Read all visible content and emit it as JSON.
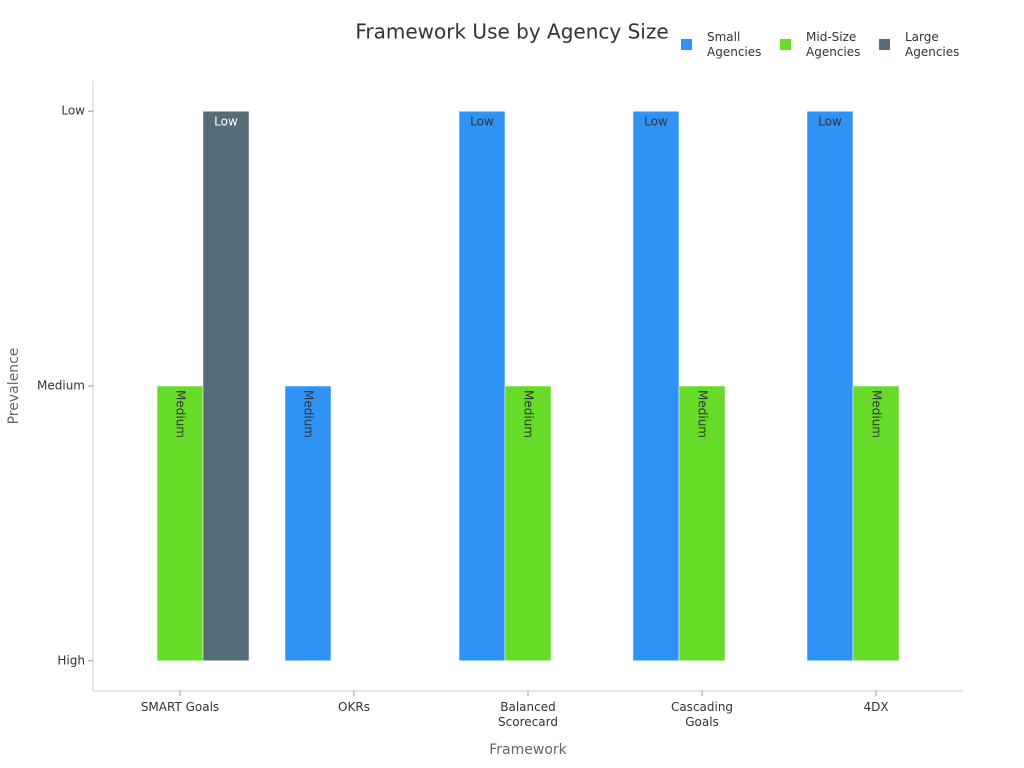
{
  "chart_data": {
    "type": "bar",
    "title": "Framework Use by Agency Size",
    "x_label": "Framework",
    "y_label": "Prevalence",
    "categories": [
      "SMART Goals",
      "OKRs",
      "Balanced Scorecard",
      "Cascading Goals",
      "4DX"
    ],
    "series": [
      {
        "name": "Small Agencies",
        "color": "#2e93f5",
        "values": [
          null,
          1,
          2,
          2,
          2
        ],
        "value_labels": [
          null,
          "Medium",
          "Low",
          "Low",
          "Low"
        ]
      },
      {
        "name": "Mid-Size Agencies",
        "color": "#66dc29",
        "values": [
          1,
          null,
          1,
          1,
          1
        ],
        "value_labels": [
          "Medium",
          null,
          "Medium",
          "Medium",
          "Medium"
        ]
      },
      {
        "name": "Large Agencies",
        "color": "#546d78",
        "values": [
          2,
          null,
          null,
          null,
          null
        ],
        "value_labels": [
          "Low",
          null,
          null,
          null,
          null
        ]
      }
    ],
    "ylim": [
      -0.11,
      2.11
    ],
    "yticks": [
      {
        "value": 0,
        "label": "High"
      },
      {
        "value": 1,
        "label": "Medium"
      },
      {
        "value": 2,
        "label": "Low"
      }
    ],
    "legend": "top-right"
  }
}
